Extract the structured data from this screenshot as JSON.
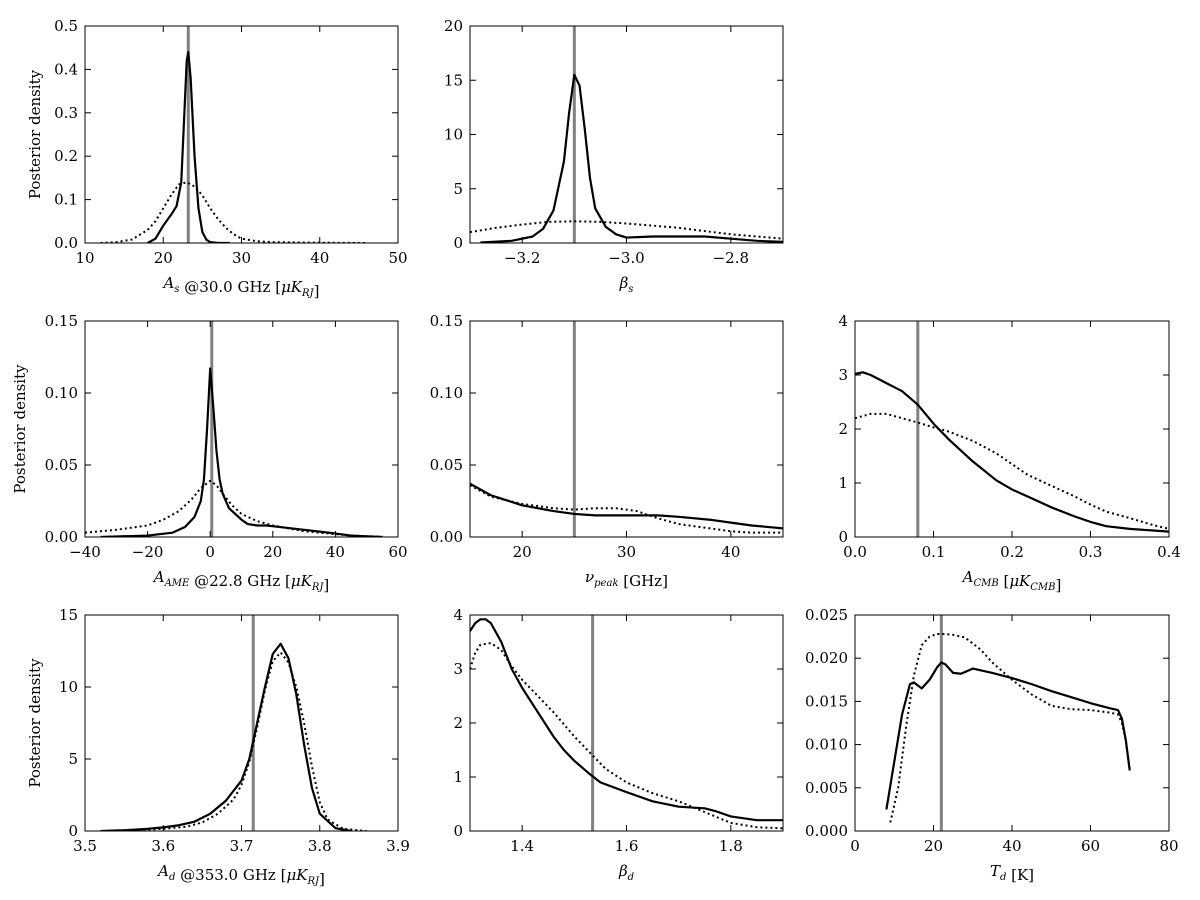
{
  "chart_data": [
    {
      "type": "line",
      "xlabel": "A_s @30.0 GHz [μK_RJ]",
      "ylabel": "Posterior density",
      "xlim": [
        10,
        50
      ],
      "ylim": [
        0,
        0.5
      ],
      "xticks": [
        10,
        20,
        30,
        40,
        50
      ],
      "xtick_labels": [
        "10",
        "20",
        "30",
        "40",
        "50"
      ],
      "yticks": [
        0,
        0.1,
        0.2,
        0.3,
        0.4,
        0.5
      ],
      "ytick_labels": [
        "0.0",
        "0.1",
        "0.2",
        "0.3",
        "0.4",
        "0.5"
      ],
      "true_value": 23.2,
      "series": [
        {
          "style": "solid",
          "x": [
            18,
            19,
            20,
            21,
            21.7,
            22.3,
            22.7,
            23,
            23.2,
            23.5,
            24,
            24.5,
            25,
            25.5,
            26,
            27,
            28.5
          ],
          "y": [
            0,
            0.01,
            0.04,
            0.065,
            0.085,
            0.14,
            0.3,
            0.42,
            0.44,
            0.38,
            0.2,
            0.08,
            0.025,
            0.008,
            0.002,
            0,
            0
          ]
        },
        {
          "style": "dotted",
          "x": [
            12,
            14,
            16,
            18,
            19,
            20,
            21,
            22,
            23,
            24,
            25,
            26,
            27,
            28,
            29,
            30,
            32,
            34,
            38,
            46
          ],
          "y": [
            0,
            0.002,
            0.008,
            0.03,
            0.05,
            0.08,
            0.11,
            0.135,
            0.14,
            0.13,
            0.11,
            0.08,
            0.055,
            0.035,
            0.02,
            0.01,
            0.004,
            0.002,
            0.001,
            0
          ]
        }
      ]
    },
    {
      "type": "line",
      "xlabel": "β_s",
      "ylabel": "",
      "xlim": [
        -3.3,
        -2.7
      ],
      "ylim": [
        0,
        20
      ],
      "xticks": [
        -3.2,
        -3.0,
        -2.8
      ],
      "xtick_labels": [
        "−3.2",
        "−3.0",
        "−2.8"
      ],
      "yticks": [
        0,
        5,
        10,
        15,
        20
      ],
      "ytick_labels": [
        "0",
        "5",
        "10",
        "15",
        "20"
      ],
      "true_value": -3.1,
      "series": [
        {
          "style": "solid",
          "x": [
            -3.28,
            -3.22,
            -3.18,
            -3.16,
            -3.14,
            -3.12,
            -3.11,
            -3.1,
            -3.09,
            -3.08,
            -3.07,
            -3.06,
            -3.04,
            -3.02,
            -3.0,
            -2.95,
            -2.9,
            -2.85,
            -2.8,
            -2.75,
            -2.7
          ],
          "y": [
            0.05,
            0.2,
            0.6,
            1.3,
            3,
            7.5,
            12,
            15.5,
            14.5,
            10.5,
            6,
            3.2,
            1.5,
            0.8,
            0.5,
            0.6,
            0.6,
            0.6,
            0.4,
            0.2,
            0.1
          ]
        },
        {
          "style": "dotted",
          "x": [
            -3.3,
            -3.25,
            -3.2,
            -3.15,
            -3.1,
            -3.05,
            -3.0,
            -2.95,
            -2.9,
            -2.85,
            -2.8,
            -2.75,
            -2.7
          ],
          "y": [
            1.0,
            1.4,
            1.7,
            1.95,
            2.0,
            1.95,
            1.8,
            1.6,
            1.4,
            1.1,
            0.8,
            0.6,
            0.4
          ]
        }
      ]
    },
    {
      "type": "line",
      "xlabel": "A_AME @22.8 GHz [μK_RJ]",
      "ylabel": "Posterior density",
      "xlim": [
        -40,
        60
      ],
      "ylim": [
        0,
        0.15
      ],
      "xticks": [
        -40,
        -20,
        0,
        20,
        40,
        60
      ],
      "xtick_labels": [
        "−40",
        "−20",
        "0",
        "20",
        "40",
        "60"
      ],
      "yticks": [
        0,
        0.05,
        0.1,
        0.15
      ],
      "ytick_labels": [
        "0.00",
        "0.05",
        "0.10",
        "0.15"
      ],
      "true_value": 0.5,
      "series": [
        {
          "style": "solid",
          "x": [
            -35,
            -20,
            -12,
            -8,
            -5,
            -3,
            -2,
            -1,
            0,
            1,
            2,
            3,
            4,
            5,
            6,
            8,
            10,
            12,
            15,
            18,
            22,
            30,
            38,
            45,
            55
          ],
          "y": [
            0,
            0.001,
            0.003,
            0.007,
            0.014,
            0.025,
            0.04,
            0.075,
            0.117,
            0.09,
            0.06,
            0.04,
            0.03,
            0.025,
            0.02,
            0.016,
            0.012,
            0.009,
            0.008,
            0.008,
            0.007,
            0.005,
            0.003,
            0.001,
            0
          ]
        },
        {
          "style": "dotted",
          "x": [
            -40,
            -30,
            -20,
            -15,
            -10,
            -6,
            -3,
            0,
            2,
            4,
            7,
            10,
            15,
            20,
            25,
            30,
            35,
            40,
            45,
            50,
            55
          ],
          "y": [
            0.003,
            0.005,
            0.008,
            0.012,
            0.018,
            0.026,
            0.034,
            0.039,
            0.036,
            0.03,
            0.022,
            0.016,
            0.011,
            0.008,
            0.006,
            0.004,
            0.003,
            0.002,
            0.001,
            0.0005,
            0.0002
          ]
        }
      ]
    },
    {
      "type": "line",
      "xlabel": "ν_peak [GHz]",
      "ylabel": "",
      "xlim": [
        15,
        45
      ],
      "ylim": [
        0,
        0.15
      ],
      "xticks": [
        20,
        30,
        40
      ],
      "xtick_labels": [
        "20",
        "30",
        "40"
      ],
      "yticks": [
        0,
        0.05,
        0.1,
        0.15
      ],
      "ytick_labels": [
        "0.00",
        "0.05",
        "0.10",
        "0.15"
      ],
      "true_value": 25,
      "series": [
        {
          "style": "solid",
          "x": [
            15,
            17,
            20,
            23,
            25,
            27,
            30,
            33,
            35,
            38,
            40,
            42,
            45
          ],
          "y": [
            0.037,
            0.029,
            0.022,
            0.018,
            0.016,
            0.015,
            0.015,
            0.015,
            0.014,
            0.012,
            0.01,
            0.008,
            0.006
          ]
        },
        {
          "style": "dotted",
          "x": [
            15,
            17,
            20,
            23,
            25,
            27,
            29,
            31,
            33,
            35,
            38,
            40,
            42,
            45
          ],
          "y": [
            0.036,
            0.028,
            0.023,
            0.02,
            0.019,
            0.02,
            0.02,
            0.018,
            0.013,
            0.009,
            0.006,
            0.004,
            0.003,
            0.003
          ]
        }
      ]
    },
    {
      "type": "line",
      "xlabel": "A_CMB [μK_CMB]",
      "ylabel": "",
      "xlim": [
        0,
        0.4
      ],
      "ylim": [
        0,
        4
      ],
      "xticks": [
        0.0,
        0.1,
        0.2,
        0.3,
        0.4
      ],
      "xtick_labels": [
        "0.0",
        "0.1",
        "0.2",
        "0.3",
        "0.4"
      ],
      "yticks": [
        0,
        1,
        2,
        3,
        4
      ],
      "ytick_labels": [
        "0",
        "1",
        "2",
        "3",
        "4"
      ],
      "true_value": 0.08,
      "series": [
        {
          "style": "solid",
          "x": [
            0,
            0.01,
            0.02,
            0.04,
            0.06,
            0.08,
            0.1,
            0.12,
            0.15,
            0.18,
            0.2,
            0.22,
            0.25,
            0.28,
            0.3,
            0.32,
            0.35,
            0.38,
            0.4
          ],
          "y": [
            3.02,
            3.05,
            3.0,
            2.85,
            2.7,
            2.45,
            2.1,
            1.8,
            1.4,
            1.05,
            0.88,
            0.75,
            0.55,
            0.38,
            0.28,
            0.2,
            0.15,
            0.12,
            0.1
          ]
        },
        {
          "style": "dotted",
          "x": [
            0,
            0.02,
            0.04,
            0.06,
            0.08,
            0.1,
            0.12,
            0.15,
            0.18,
            0.2,
            0.22,
            0.25,
            0.28,
            0.3,
            0.32,
            0.35,
            0.38,
            0.4
          ],
          "y": [
            2.2,
            2.28,
            2.28,
            2.2,
            2.12,
            2.03,
            1.95,
            1.78,
            1.55,
            1.35,
            1.15,
            0.95,
            0.75,
            0.6,
            0.47,
            0.35,
            0.22,
            0.15
          ]
        }
      ]
    },
    {
      "type": "line",
      "xlabel": "A_d @353.0 GHz [μK_RJ]",
      "ylabel": "Posterior density",
      "xlim": [
        3.5,
        3.9
      ],
      "ylim": [
        0,
        15
      ],
      "xticks": [
        3.5,
        3.6,
        3.7,
        3.8,
        3.9
      ],
      "xtick_labels": [
        "3.5",
        "3.6",
        "3.7",
        "3.8",
        "3.9"
      ],
      "yticks": [
        0,
        5,
        10,
        15
      ],
      "ytick_labels": [
        "0",
        "5",
        "10",
        "15"
      ],
      "true_value": 3.715,
      "series": [
        {
          "style": "solid",
          "x": [
            3.52,
            3.55,
            3.58,
            3.6,
            3.62,
            3.64,
            3.66,
            3.68,
            3.7,
            3.71,
            3.72,
            3.73,
            3.74,
            3.75,
            3.76,
            3.77,
            3.78,
            3.79,
            3.8,
            3.82,
            3.84
          ],
          "y": [
            0,
            0.05,
            0.15,
            0.25,
            0.4,
            0.65,
            1.2,
            2.1,
            3.5,
            5,
            7.5,
            10,
            12.3,
            13,
            12,
            9.5,
            6,
            3,
            1.2,
            0.2,
            0
          ]
        },
        {
          "style": "dotted",
          "x": [
            3.53,
            3.56,
            3.6,
            3.63,
            3.65,
            3.67,
            3.69,
            3.7,
            3.71,
            3.72,
            3.73,
            3.74,
            3.75,
            3.76,
            3.77,
            3.78,
            3.79,
            3.8,
            3.81,
            3.83,
            3.86
          ],
          "y": [
            0,
            0.05,
            0.15,
            0.3,
            0.6,
            1.2,
            2.2,
            3.2,
            4.8,
            7.2,
            9.8,
            11.8,
            12.4,
            11.7,
            10,
            7.5,
            4.5,
            2,
            0.8,
            0.15,
            0
          ]
        }
      ]
    },
    {
      "type": "line",
      "xlabel": "β_d",
      "ylabel": "",
      "xlim": [
        1.3,
        1.9
      ],
      "ylim": [
        0,
        4
      ],
      "xticks": [
        1.4,
        1.6,
        1.8
      ],
      "xtick_labels": [
        "1.4",
        "1.6",
        "1.8"
      ],
      "yticks": [
        0,
        1,
        2,
        3,
        4
      ],
      "ytick_labels": [
        "0",
        "1",
        "2",
        "3",
        "4"
      ],
      "true_value": 1.535,
      "series": [
        {
          "style": "solid",
          "x": [
            1.3,
            1.31,
            1.32,
            1.33,
            1.34,
            1.36,
            1.38,
            1.4,
            1.43,
            1.46,
            1.48,
            1.5,
            1.53,
            1.55,
            1.6,
            1.65,
            1.7,
            1.75,
            1.77,
            1.8,
            1.85,
            1.9
          ],
          "y": [
            3.7,
            3.85,
            3.92,
            3.92,
            3.85,
            3.5,
            3.0,
            2.65,
            2.2,
            1.75,
            1.5,
            1.3,
            1.05,
            0.9,
            0.72,
            0.55,
            0.45,
            0.42,
            0.37,
            0.27,
            0.2,
            0.2
          ]
        },
        {
          "style": "dotted",
          "x": [
            1.3,
            1.31,
            1.32,
            1.34,
            1.36,
            1.38,
            1.4,
            1.43,
            1.46,
            1.5,
            1.53,
            1.56,
            1.6,
            1.65,
            1.7,
            1.75,
            1.8,
            1.85,
            1.9
          ],
          "y": [
            3.0,
            3.3,
            3.45,
            3.48,
            3.35,
            3.05,
            2.8,
            2.5,
            2.2,
            1.75,
            1.45,
            1.15,
            0.9,
            0.7,
            0.55,
            0.35,
            0.15,
            0.07,
            0.05
          ]
        }
      ]
    },
    {
      "type": "line",
      "xlabel": "T_d [K]",
      "ylabel": "",
      "xlim": [
        0,
        80
      ],
      "ylim": [
        0,
        0.025
      ],
      "xticks": [
        0,
        20,
        40,
        60,
        80
      ],
      "xtick_labels": [
        "0",
        "20",
        "40",
        "60",
        "80"
      ],
      "yticks": [
        0,
        0.005,
        0.01,
        0.015,
        0.02,
        0.025
      ],
      "ytick_labels": [
        "0.000",
        "0.005",
        "0.010",
        "0.015",
        "0.020",
        "0.025"
      ],
      "true_value": 22,
      "series": [
        {
          "style": "solid",
          "x": [
            8,
            10,
            12,
            14,
            15,
            17,
            19,
            21,
            22,
            23,
            25,
            27,
            30,
            35,
            40,
            45,
            50,
            55,
            60,
            65,
            67,
            68,
            69,
            70
          ],
          "y": [
            0.0025,
            0.008,
            0.0135,
            0.017,
            0.0172,
            0.0165,
            0.0175,
            0.019,
            0.0195,
            0.0193,
            0.0183,
            0.0182,
            0.0188,
            0.0183,
            0.0177,
            0.017,
            0.0162,
            0.0155,
            0.0148,
            0.0142,
            0.014,
            0.013,
            0.0105,
            0.007
          ]
        },
        {
          "style": "dotted",
          "x": [
            9,
            11,
            13,
            15,
            17,
            19,
            21,
            23,
            25,
            28,
            32,
            35,
            40,
            45,
            50,
            55,
            60,
            65,
            67,
            68,
            69,
            70
          ],
          "y": [
            0.001,
            0.005,
            0.012,
            0.018,
            0.0215,
            0.0225,
            0.0228,
            0.0228,
            0.0227,
            0.0224,
            0.021,
            0.0195,
            0.0175,
            0.0158,
            0.0145,
            0.0141,
            0.014,
            0.0137,
            0.0135,
            0.0125,
            0.0105,
            0.007
          ]
        }
      ]
    }
  ]
}
